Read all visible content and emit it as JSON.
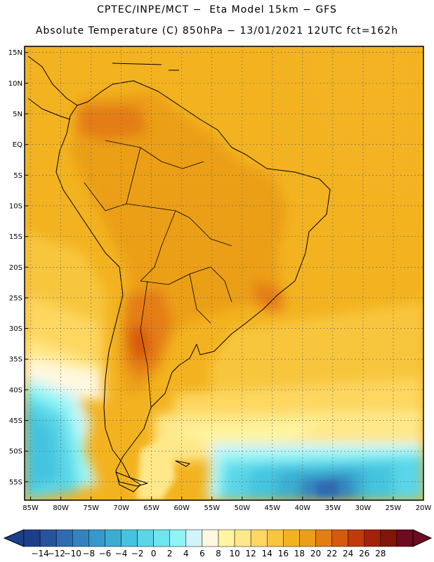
{
  "header": {
    "line1": "CPTEC/INPE/MCT −  Eta Model 15km − GFS",
    "line2": "Absolute Temperature (C) 850hPa − 13/01/2021 12UTC fct=162h"
  },
  "axes": {
    "lat_labels": [
      "15N",
      "10N",
      "5N",
      "EQ",
      "5S",
      "10S",
      "15S",
      "20S",
      "25S",
      "30S",
      "35S",
      "40S",
      "45S",
      "50S",
      "55S"
    ],
    "lon_labels": [
      "85W",
      "80W",
      "75W",
      "70W",
      "65W",
      "60W",
      "55W",
      "50W",
      "45W",
      "40W",
      "35W",
      "30W",
      "25W",
      "20W"
    ]
  },
  "colorbar": {
    "labels": [
      "-14",
      "-12",
      "-10",
      "-8",
      "-6",
      "-4",
      "-2",
      "0",
      "2",
      "4",
      "6",
      "8",
      "10",
      "12",
      "14",
      "16",
      "18",
      "20",
      "22",
      "24",
      "26",
      "28"
    ],
    "colors": [
      "#1d3f8a",
      "#27549d",
      "#2f6bb0",
      "#3383c0",
      "#3599c9",
      "#3aaed2",
      "#45c4df",
      "#5ad6e8",
      "#6ee6ee",
      "#8ef4f4",
      "#d0f4f8",
      "#fff8e0",
      "#fff5a0",
      "#fee88a",
      "#fdd760",
      "#f8c63e",
      "#f3b320",
      "#eb9f18",
      "#e47d12",
      "#d7590c",
      "#c2390a",
      "#a3210a",
      "#821608",
      "#6d0b20"
    ],
    "under_color": "#1d3f8a",
    "over_color": "#6d0b20"
  },
  "chart_data": {
    "type": "heatmap",
    "variable": "Absolute Temperature (C) 850hPa",
    "lon_range": [
      -86,
      -20
    ],
    "lat_range": [
      -58,
      16
    ],
    "levels": [
      -14,
      -12,
      -10,
      -8,
      -6,
      -4,
      -2,
      0,
      2,
      4,
      6,
      8,
      10,
      12,
      14,
      16,
      18,
      20,
      22,
      24,
      26,
      28
    ],
    "grid": true,
    "regions": [
      {
        "area": "tropical ocean & northern continent",
        "value_range": [
          16,
          18
        ]
      },
      {
        "area": "Amazon / central Brazil",
        "value_range": [
          18,
          20
        ]
      },
      {
        "area": "Chaco / northern Argentina",
        "value_range": [
          20,
          24
        ]
      },
      {
        "area": "south Atlantic 35S-45S",
        "value_range": [
          10,
          14
        ]
      },
      {
        "area": "Patagonia coast",
        "value_range": [
          8,
          12
        ]
      },
      {
        "area": "southern ocean 45S-58S",
        "value_range": [
          -8,
          4
        ]
      },
      {
        "area": "coldest core near 35W 55S",
        "value_range": [
          -10,
          -8
        ]
      }
    ]
  }
}
